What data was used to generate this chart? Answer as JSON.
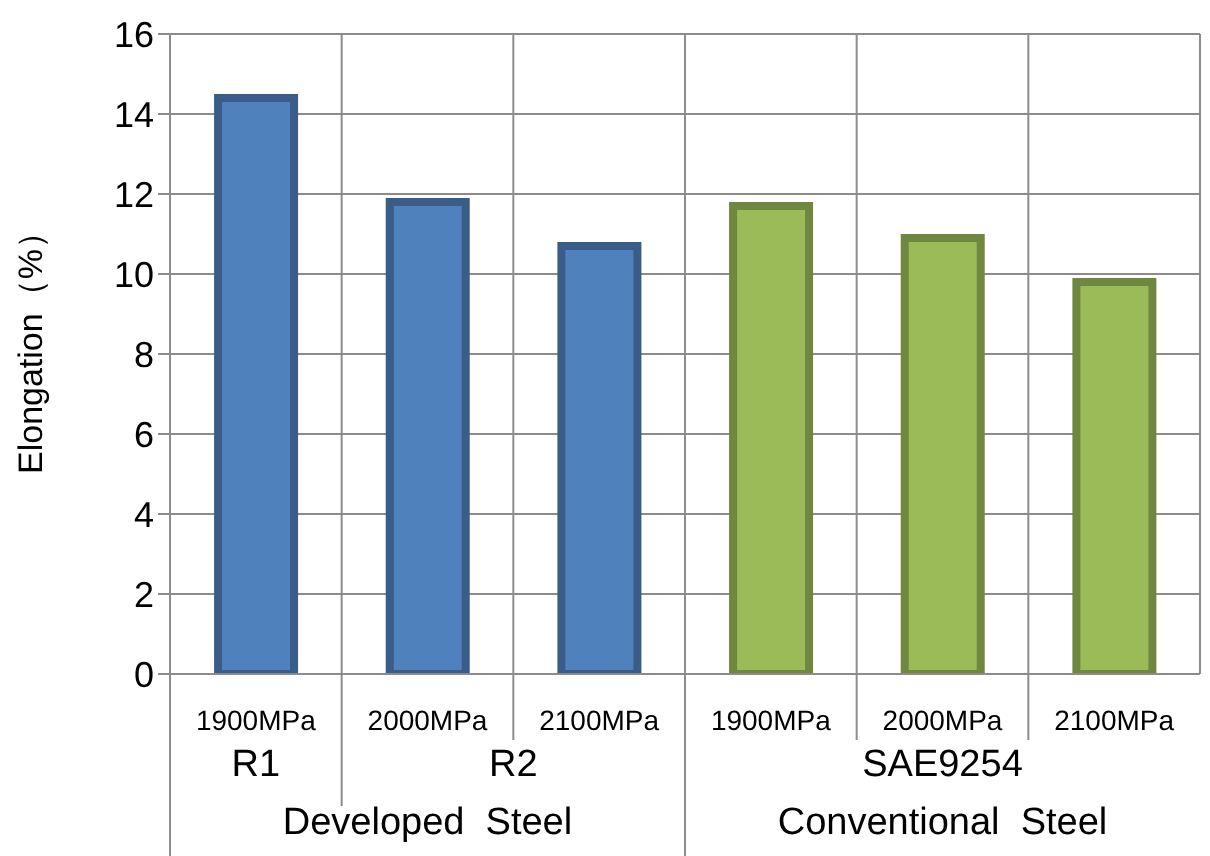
{
  "chart_data": {
    "type": "bar",
    "ylabel": "Elongation（%）",
    "categories": [
      "1900MPa",
      "2000MPa",
      "2100MPa",
      "1900MPa",
      "2000MPa",
      "2100MPa"
    ],
    "values": [
      14.4,
      11.8,
      10.7,
      11.7,
      10.9,
      9.8
    ],
    "colors": [
      "#4f81bd",
      "#4f81bd",
      "#4f81bd",
      "#9bbb59",
      "#9bbb59",
      "#9bbb59"
    ],
    "ylim": [
      0,
      16
    ],
    "yticks": [
      0,
      2,
      4,
      6,
      8,
      10,
      12,
      14,
      16
    ],
    "grid": true,
    "annotations": [
      "R1",
      "R2",
      "SAE9254",
      "Developed  Steel",
      "Conventional  Steel"
    ]
  }
}
